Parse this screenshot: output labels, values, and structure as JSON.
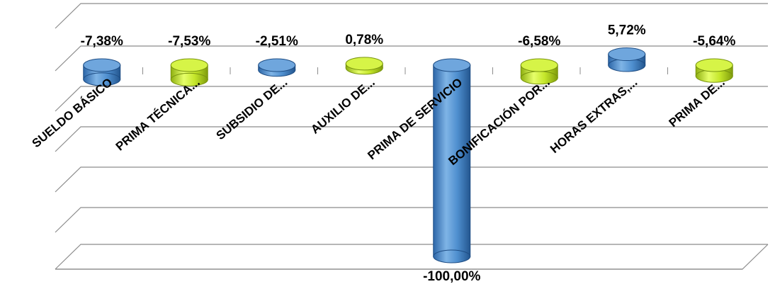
{
  "chart_data": {
    "type": "bar",
    "categories": [
      "SUELDO BÁSICO",
      "PRIMA TÉCNICA...",
      "SUBSIDIO DE...",
      "AUXILIO DE...",
      "PRIMA DE SERVICIO",
      "BONIFICACIÓN POR...",
      "HORAS EXTRAS,...",
      "PRIMA DE..."
    ],
    "values": [
      -7.38,
      -7.53,
      -2.51,
      0.78,
      -100.0,
      -6.58,
      5.72,
      -5.64
    ],
    "data_labels": [
      "-7,38%",
      "-7,53%",
      "-2,51%",
      "0,78%",
      "-100,00%",
      "-6,58%",
      "5,72%",
      "-5,64%"
    ],
    "bar_colors": [
      "#4f8fcf",
      "#c4e62a",
      "#4f8fcf",
      "#c4e62a",
      "#4f8fcf",
      "#c4e62a",
      "#4f8fcf",
      "#c4e62a"
    ],
    "style": "3d-cylinder",
    "grid": true,
    "legend": "none",
    "title": "",
    "xlabel": "",
    "ylabel": ""
  }
}
